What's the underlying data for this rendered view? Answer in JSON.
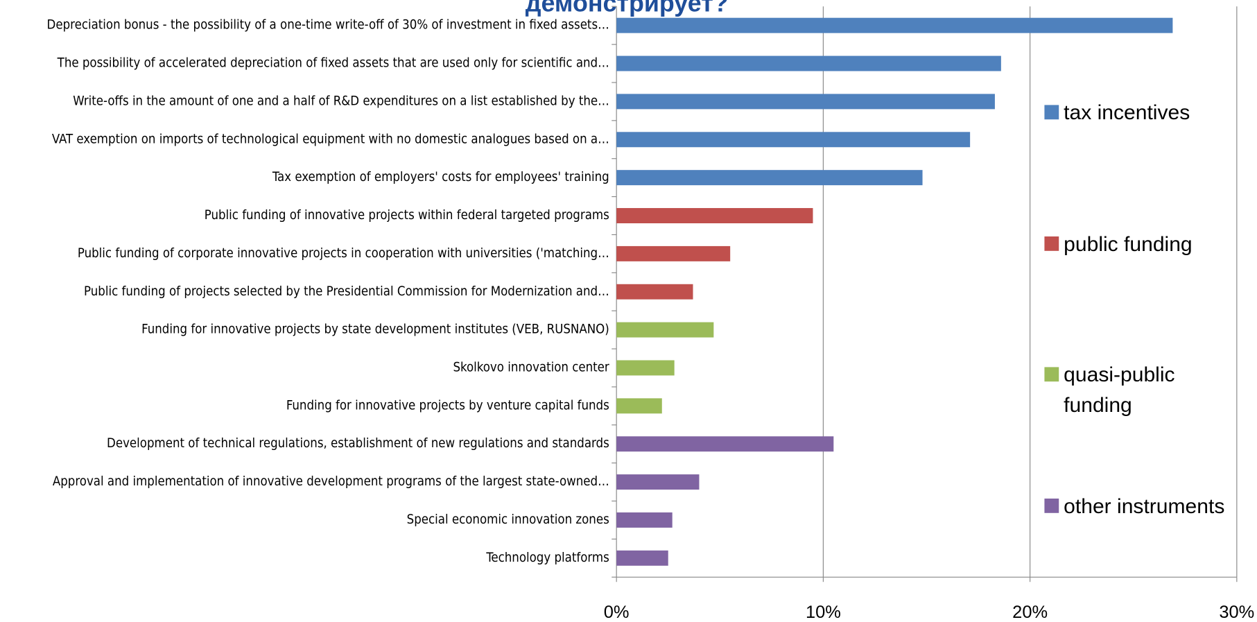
{
  "chart_data": {
    "type": "barh",
    "title": "демонстрирует?",
    "categories": [
      "Depreciation bonus - the possibility of a one-time write-off of 30% of investment in fixed assets…",
      "The possibility of accelerated depreciation of fixed assets that are used only for scientific and…",
      "Write-offs in the amount of one and a half of R&D expenditures on a list established by the…",
      "VAT exemption on imports of technological equipment with no domestic analogues based on a…",
      "Tax exemption of employers' costs for employees' training",
      "Public funding of innovative projects within federal targeted programs",
      "Public funding of corporate innovative projects in cooperation with universities ('matching…",
      "Public funding of projects selected by the Presidential Commission for Modernization and…",
      "Funding for innovative projects by state development institutes (VEB, RUSNANO)",
      "Skolkovo innovation center",
      "Funding for innovative projects by venture capital funds",
      "Development of technical regulations, establishment of new regulations and standards",
      "Approval and implementation of innovative development programs of the largest state-owned…",
      "Special economic innovation zones",
      "Technology platforms"
    ],
    "series": [
      {
        "name": "tax incentives",
        "color": "#4f81bd",
        "values": [
          26.9,
          18.6,
          18.3,
          17.1,
          14.8,
          null,
          null,
          null,
          null,
          null,
          null,
          null,
          null,
          null,
          null
        ]
      },
      {
        "name": "public funding",
        "color": "#c0504d",
        "values": [
          null,
          null,
          null,
          null,
          null,
          9.5,
          5.5,
          3.7,
          null,
          null,
          null,
          null,
          null,
          null,
          null
        ]
      },
      {
        "name": "quasi-public funding",
        "color": "#9bbb59",
        "values": [
          null,
          null,
          null,
          null,
          null,
          null,
          null,
          null,
          4.7,
          2.8,
          2.2,
          null,
          null,
          null,
          null
        ]
      },
      {
        "name": "other instruments",
        "color": "#8064a2",
        "values": [
          null,
          null,
          null,
          null,
          null,
          null,
          null,
          null,
          null,
          null,
          null,
          10.5,
          4.0,
          2.7,
          2.5
        ]
      }
    ],
    "xlim": [
      0,
      30
    ],
    "xticks": [
      {
        "value": 0,
        "label": "0%"
      },
      {
        "value": 10,
        "label": "10%"
      },
      {
        "value": 20,
        "label": "20%"
      },
      {
        "value": 30,
        "label": "30%"
      }
    ],
    "grid": true
  }
}
